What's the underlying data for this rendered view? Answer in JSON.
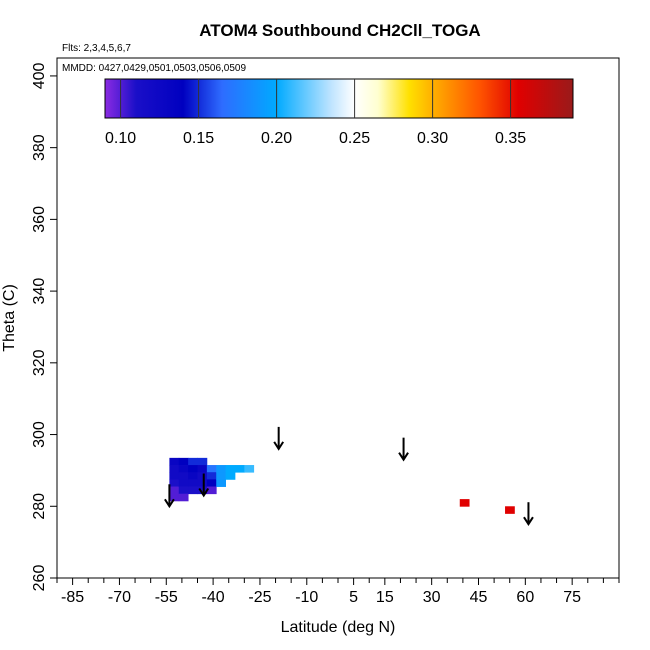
{
  "chart_data": {
    "type": "scatter",
    "title": "ATOM4 Southbound CH2Cll_TOGA",
    "flights_note": "Flts: 2,3,4,5,6,7",
    "dates_note": "MMDD: 0427,0429,0501,0503,0506,0509",
    "xlabel": "Latitude (deg N)",
    "ylabel": "Theta (C)",
    "xlim": [
      -90,
      90
    ],
    "ylim": [
      260,
      405
    ],
    "x_ticks": [
      -85,
      -70,
      -55,
      -40,
      -25,
      -10,
      5,
      15,
      30,
      45,
      60,
      75
    ],
    "x_tick_labels": [
      "-85",
      "-70",
      "-55",
      "-40",
      "-25",
      "-10",
      "5",
      "15",
      "30",
      "45",
      "60",
      "75"
    ],
    "x_minor_ticks": [
      -90,
      -80,
      -75,
      -65,
      -60,
      -50,
      -45,
      -35,
      -30,
      -20,
      -15,
      -5,
      0,
      10,
      20,
      25,
      35,
      40,
      50,
      55,
      65,
      70,
      80,
      85,
      90
    ],
    "y_ticks": [
      260,
      280,
      300,
      320,
      340,
      360,
      380,
      400
    ],
    "y_tick_labels": [
      "260",
      "280",
      "300",
      "320",
      "340",
      "360",
      "380",
      "400"
    ],
    "colorbar": {
      "min": 0.09,
      "max": 0.39,
      "ticks": [
        0.1,
        0.15,
        0.2,
        0.25,
        0.3,
        0.35
      ],
      "tick_labels": [
        "0.10",
        "0.15",
        "0.20",
        "0.25",
        "0.30",
        "0.35"
      ],
      "stops": [
        {
          "v": 0.09,
          "color": "#8b2be2"
        },
        {
          "v": 0.11,
          "color": "#1a0fc8"
        },
        {
          "v": 0.14,
          "color": "#0000c0"
        },
        {
          "v": 0.165,
          "color": "#2e6cff"
        },
        {
          "v": 0.2,
          "color": "#00aaff"
        },
        {
          "v": 0.235,
          "color": "#bfe4ff"
        },
        {
          "v": 0.25,
          "color": "#ffffff"
        },
        {
          "v": 0.265,
          "color": "#ffffd0"
        },
        {
          "v": 0.285,
          "color": "#ffe000"
        },
        {
          "v": 0.305,
          "color": "#ffa000"
        },
        {
          "v": 0.33,
          "color": "#ff5500"
        },
        {
          "v": 0.355,
          "color": "#e00000"
        },
        {
          "v": 0.39,
          "color": "#9a1a1a"
        }
      ]
    },
    "cells": [
      {
        "lat": -52.5,
        "theta": 292.5,
        "value": 0.13
      },
      {
        "lat": -52.5,
        "theta": 290.5,
        "value": 0.12
      },
      {
        "lat": -52.5,
        "theta": 288.5,
        "value": 0.12
      },
      {
        "lat": -52.5,
        "theta": 286.5,
        "value": 0.11
      },
      {
        "lat": -52.5,
        "theta": 284.5,
        "value": 0.1
      },
      {
        "lat": -52.5,
        "theta": 282.5,
        "value": 0.1
      },
      {
        "lat": -49.5,
        "theta": 292.5,
        "value": 0.14
      },
      {
        "lat": -49.5,
        "theta": 290.5,
        "value": 0.13
      },
      {
        "lat": -49.5,
        "theta": 288.5,
        "value": 0.12
      },
      {
        "lat": -49.5,
        "theta": 286.5,
        "value": 0.12
      },
      {
        "lat": -49.5,
        "theta": 284.5,
        "value": 0.11
      },
      {
        "lat": -49.5,
        "theta": 282.5,
        "value": 0.1
      },
      {
        "lat": -46.5,
        "theta": 292.5,
        "value": 0.15
      },
      {
        "lat": -46.5,
        "theta": 290.5,
        "value": 0.14
      },
      {
        "lat": -46.5,
        "theta": 288.5,
        "value": 0.13
      },
      {
        "lat": -46.5,
        "theta": 286.5,
        "value": 0.12
      },
      {
        "lat": -46.5,
        "theta": 284.5,
        "value": 0.11
      },
      {
        "lat": -43.5,
        "theta": 292.5,
        "value": 0.15
      },
      {
        "lat": -43.5,
        "theta": 290.5,
        "value": 0.13
      },
      {
        "lat": -43.5,
        "theta": 288.5,
        "value": 0.12
      },
      {
        "lat": -43.5,
        "theta": 286.5,
        "value": 0.12
      },
      {
        "lat": -43.5,
        "theta": 284.5,
        "value": 0.11
      },
      {
        "lat": -40.5,
        "theta": 290.5,
        "value": 0.17
      },
      {
        "lat": -40.5,
        "theta": 288.5,
        "value": 0.15
      },
      {
        "lat": -40.5,
        "theta": 286.5,
        "value": 0.14
      },
      {
        "lat": -40.5,
        "theta": 284.5,
        "value": 0.1
      },
      {
        "lat": -37.5,
        "theta": 290.5,
        "value": 0.19
      },
      {
        "lat": -37.5,
        "theta": 288.5,
        "value": 0.19
      },
      {
        "lat": -37.5,
        "theta": 286.5,
        "value": 0.19
      },
      {
        "lat": -34.5,
        "theta": 290.5,
        "value": 0.2
      },
      {
        "lat": -34.5,
        "theta": 288.5,
        "value": 0.2
      },
      {
        "lat": -31.5,
        "theta": 290.5,
        "value": 0.2
      },
      {
        "lat": -28.5,
        "theta": 290.5,
        "value": 0.21
      },
      {
        "lat": 40.5,
        "theta": 281.0,
        "value": 0.355
      },
      {
        "lat": 55.0,
        "theta": 279.0,
        "value": 0.355
      }
    ],
    "flight_arrows": [
      {
        "lat": -54,
        "theta": 280
      },
      {
        "lat": -43,
        "theta": 283
      },
      {
        "lat": -19,
        "theta": 296
      },
      {
        "lat": 21,
        "theta": 293
      },
      {
        "lat": 61,
        "theta": 275
      }
    ]
  }
}
